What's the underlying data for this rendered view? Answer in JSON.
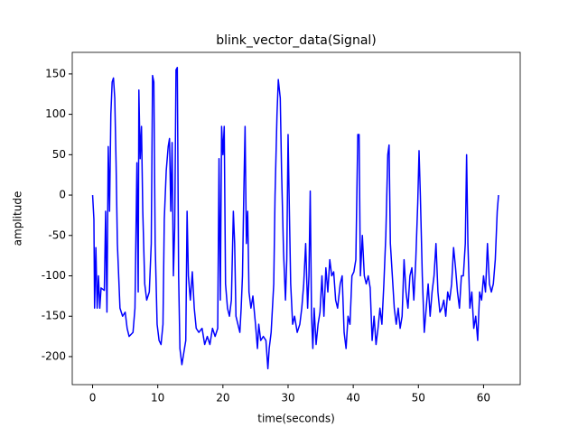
{
  "chart_data": {
    "type": "line",
    "title": "blink_vector_data(Signal)",
    "xlabel": "time(seconds)",
    "ylabel": "amplitude",
    "xlim": [
      -3.125,
      65.625
    ],
    "ylim": [
      -234.7,
      176.7
    ],
    "xticks": [
      0,
      10,
      20,
      30,
      40,
      50,
      60
    ],
    "yticks": [
      -200,
      -150,
      -100,
      -50,
      0,
      50,
      100,
      150
    ],
    "series": [
      {
        "color": "#0000ff",
        "x": [
          0,
          0.2,
          0.3,
          0.5,
          0.7,
          0.9,
          1.1,
          1.3,
          1.8,
          2.0,
          2.2,
          2.4,
          2.6,
          2.8,
          3.0,
          3.2,
          3.4,
          3.6,
          3.8,
          4.2,
          4.6,
          5.0,
          5.3,
          5.6,
          6.2,
          6.5,
          6.8,
          7.0,
          7.1,
          7.3,
          7.5,
          7.7,
          8.0,
          8.3,
          8.7,
          9.0,
          9.2,
          9.4,
          9.6,
          9.9,
          10.2,
          10.5,
          10.8,
          11.0,
          11.3,
          11.6,
          11.8,
          12.0,
          12.2,
          12.4,
          12.6,
          12.8,
          13.0,
          13.2,
          13.4,
          13.7,
          14.0,
          14.3,
          14.5,
          14.7,
          15.0,
          15.3,
          15.6,
          15.9,
          16.3,
          16.8,
          17.2,
          17.6,
          18.0,
          18.4,
          18.8,
          19.2,
          19.4,
          19.6,
          19.8,
          20.0,
          20.2,
          20.4,
          20.7,
          21.0,
          21.3,
          21.6,
          21.8,
          22.0,
          22.3,
          22.6,
          22.8,
          23.0,
          23.2,
          23.4,
          23.6,
          23.8,
          24.0,
          24.3,
          24.6,
          25.0,
          25.3,
          25.5,
          25.8,
          26.2,
          26.6,
          26.9,
          27.1,
          27.4,
          27.8,
          28.0,
          28.3,
          28.5,
          28.8,
          29.0,
          29.3,
          29.6,
          29.8,
          30.0,
          30.2,
          30.4,
          30.7,
          31.0,
          31.4,
          31.8,
          32.1,
          32.4,
          32.7,
          33.0,
          33.2,
          33.4,
          33.6,
          33.8,
          34.0,
          34.3,
          34.6,
          34.9,
          35.2,
          35.5,
          35.8,
          36.1,
          36.4,
          36.7,
          37.0,
          37.3,
          37.6,
          38.0,
          38.3,
          38.6,
          38.9,
          39.2,
          39.5,
          39.8,
          40.1,
          40.4,
          40.7,
          40.9,
          41.1,
          41.4,
          41.7,
          42.0,
          42.3,
          42.6,
          42.9,
          43.2,
          43.5,
          43.8,
          44.1,
          44.4,
          44.7,
          45.0,
          45.3,
          45.5,
          45.7,
          46.0,
          46.3,
          46.6,
          46.9,
          47.2,
          47.5,
          47.8,
          48.1,
          48.4,
          48.7,
          49.0,
          49.3,
          49.6,
          49.9,
          50.1,
          50.3,
          50.6,
          50.9,
          51.2,
          51.5,
          51.8,
          52.1,
          52.4,
          52.7,
          53.0,
          53.3,
          53.6,
          53.9,
          54.2,
          54.5,
          54.8,
          55.1,
          55.4,
          55.7,
          56.0,
          56.3,
          56.6,
          56.9,
          57.2,
          57.4,
          57.6,
          57.9,
          58.2,
          58.5,
          58.8,
          59.1,
          59.4,
          59.7,
          60.0,
          60.3,
          60.6,
          60.9,
          61.2,
          61.5,
          61.8,
          62.1,
          62.3
        ],
        "values": [
          0,
          -30,
          -140,
          -65,
          -140,
          -100,
          -140,
          -115,
          -118,
          -20,
          -145,
          60,
          -20,
          100,
          140,
          145,
          120,
          40,
          -60,
          -140,
          -150,
          -145,
          -165,
          -175,
          -170,
          -140,
          40,
          -120,
          130,
          45,
          85,
          -20,
          -110,
          -130,
          -120,
          -60,
          148,
          140,
          -60,
          -160,
          -180,
          -185,
          -160,
          -30,
          30,
          60,
          70,
          -20,
          65,
          -100,
          -40,
          155,
          158,
          -100,
          -190,
          -210,
          -195,
          -180,
          -20,
          -100,
          -130,
          -95,
          -140,
          -165,
          -170,
          -165,
          -185,
          -175,
          -185,
          -165,
          -175,
          -165,
          45,
          -130,
          85,
          50,
          85,
          -110,
          -140,
          -150,
          -130,
          -20,
          -60,
          -150,
          -160,
          -170,
          -140,
          -100,
          0,
          85,
          -60,
          -20,
          -120,
          -140,
          -125,
          -160,
          -190,
          -160,
          -180,
          -175,
          -180,
          -215,
          -190,
          -170,
          -110,
          0,
          100,
          143,
          120,
          30,
          -70,
          -130,
          -80,
          75,
          -20,
          -110,
          -160,
          -150,
          -170,
          -160,
          -140,
          -110,
          -60,
          -140,
          -100,
          5,
          -150,
          -190,
          -140,
          -185,
          -160,
          -145,
          -100,
          -150,
          -90,
          -120,
          -80,
          -100,
          -95,
          -130,
          -140,
          -110,
          -100,
          -170,
          -190,
          -150,
          -160,
          -100,
          -95,
          -80,
          75,
          75,
          -100,
          -50,
          -100,
          -110,
          -100,
          -115,
          -180,
          -150,
          -185,
          -165,
          -140,
          -160,
          -110,
          -50,
          50,
          62,
          -60,
          -100,
          -140,
          -160,
          -140,
          -165,
          -150,
          -80,
          -120,
          -140,
          -100,
          -90,
          -130,
          -80,
          -10,
          55,
          0,
          -100,
          -170,
          -140,
          -110,
          -150,
          -120,
          -100,
          -60,
          -120,
          -145,
          -140,
          -130,
          -150,
          -120,
          -130,
          -110,
          -65,
          -90,
          -120,
          -140,
          -100,
          -100,
          -60,
          50,
          -60,
          -140,
          -120,
          -165,
          -150,
          -180,
          -120,
          -130,
          -100,
          -120,
          -60,
          -110,
          -120,
          -110,
          -80,
          -20,
          0
        ]
      }
    ]
  }
}
